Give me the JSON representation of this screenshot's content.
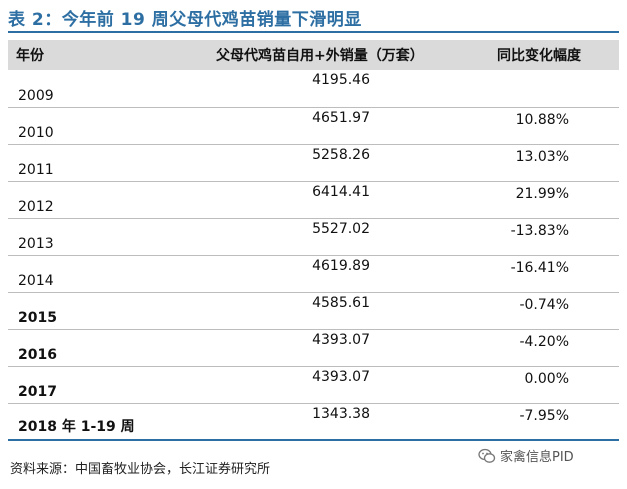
{
  "title": "表 2：今年前 19 周父母代鸡苗销量下滑明显",
  "table": {
    "headers": {
      "year": "年份",
      "sales": "父母代鸡苗自用+外销量（万套）",
      "change": "同比变化幅度"
    },
    "rows": [
      {
        "year": "2009",
        "sales": "4195.46",
        "change": ""
      },
      {
        "year": "2010",
        "sales": "4651.97",
        "change": "10.88%"
      },
      {
        "year": "2011",
        "sales": "5258.26",
        "change": "13.03%"
      },
      {
        "year": "2012",
        "sales": "6414.41",
        "change": "21.99%"
      },
      {
        "year": "2013",
        "sales": "5527.02",
        "change": "-13.83%"
      },
      {
        "year": "2014",
        "sales": "4619.89",
        "change": "-16.41%"
      },
      {
        "year": "2015",
        "sales": "4585.61",
        "change": "-0.74%"
      },
      {
        "year": "2016",
        "sales": "4393.07",
        "change": "-4.20%"
      },
      {
        "year": "2017",
        "sales": "4393.07",
        "change": "0.00%"
      },
      {
        "year": "2018 年 1-19 周",
        "sales": "1343.38",
        "change": "-7.95%"
      }
    ]
  },
  "source": "资料来源：中国畜牧业协会，长江证券研究所",
  "watermark": {
    "text": "家禽信息PID",
    "icon": "wechat-logo-icon"
  },
  "colors": {
    "title": "#2e6fa3",
    "header_bg": "#dadada",
    "rule": "#2e6fa3"
  }
}
